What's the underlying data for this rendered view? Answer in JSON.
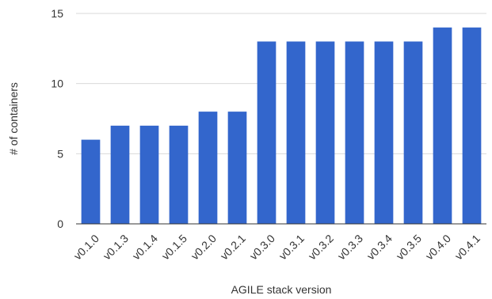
{
  "chart_data": {
    "type": "bar",
    "title": "",
    "xlabel": "AGILE stack version",
    "ylabel": "# of containers",
    "categories": [
      "v0.1.0",
      "v0.1.3",
      "v0.1.4",
      "v0.1.5",
      "v0.2.0",
      "v0.2.1",
      "v0.3.0",
      "v0.3.1",
      "v0.3.2",
      "v0.3.3",
      "v0.3.4",
      "v0.3.5",
      "v0.4.0",
      "v0.4.1"
    ],
    "values": [
      6,
      7,
      7,
      7,
      8,
      8,
      13,
      13,
      13,
      13,
      13,
      13,
      14,
      14
    ],
    "ylim": [
      0,
      15
    ],
    "yticks": [
      "0",
      "5",
      "10",
      "15"
    ],
    "grid": true,
    "legend": "none",
    "bar_color": "#3366cc"
  }
}
